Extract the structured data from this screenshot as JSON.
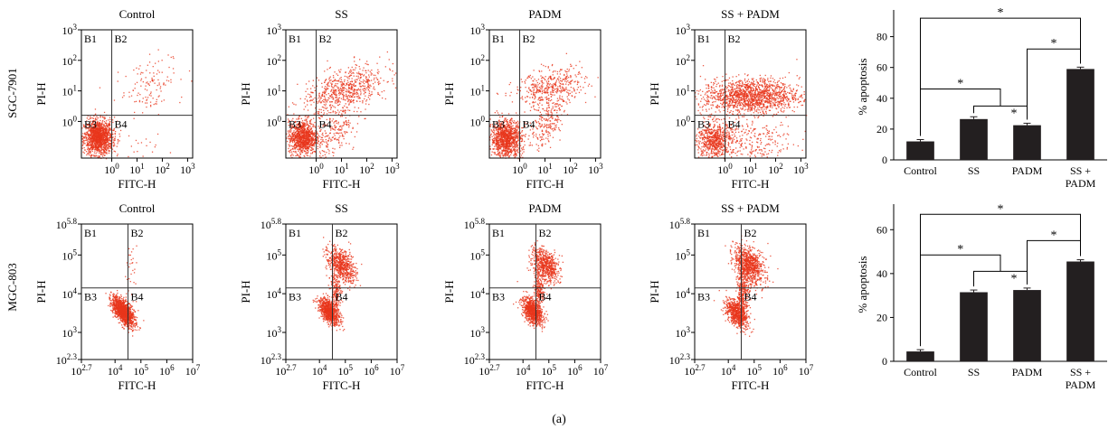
{
  "figure": {
    "panel_label": "(a)",
    "row_labels": [
      "SGC-7901",
      "MGC-803"
    ],
    "colors": {
      "dots": "#e8361c",
      "bars": "#231f20",
      "axes": "#000000"
    }
  },
  "chart_data": [
    {
      "type": "scatter",
      "row": 0,
      "col": 0,
      "title": "Control",
      "xlabel": "FITC-H",
      "ylabel": "PI-H",
      "x_ticks": [
        "10^0",
        "10^1",
        "10^2",
        "10^3"
      ],
      "y_ticks": [
        "10^0",
        "10^1",
        "10^2",
        "10^3"
      ],
      "xlim": [
        -1.2,
        3.2
      ],
      "ylim": [
        -1.2,
        3.0
      ],
      "scale": "log",
      "quadrant_gate": {
        "x": 0,
        "y": 0.2
      },
      "quadrant_labels": [
        "B1",
        "B2",
        "B3",
        "B4"
      ],
      "populations": [
        {
          "cx": -0.55,
          "cy": -0.5,
          "sx": 0.28,
          "sy": 0.28,
          "n": 1400
        },
        {
          "cx": 1.4,
          "cy": 1.2,
          "sx": 0.6,
          "sy": 0.45,
          "n": 130,
          "rot": 0.35
        },
        {
          "cx": 0.2,
          "cy": -0.9,
          "sx": 0.8,
          "sy": 0.25,
          "n": 40
        }
      ]
    },
    {
      "type": "scatter",
      "row": 0,
      "col": 1,
      "title": "SS",
      "xlabel": "FITC-H",
      "ylabel": "PI-H",
      "x_ticks": [
        "10^0",
        "10^1",
        "10^2",
        "10^3"
      ],
      "y_ticks": [
        "10^0",
        "10^1",
        "10^2",
        "10^3"
      ],
      "xlim": [
        -1.2,
        3.2
      ],
      "ylim": [
        -1.2,
        3.0
      ],
      "scale": "log",
      "quadrant_gate": {
        "x": 0,
        "y": 0.2
      },
      "quadrant_labels": [
        "B1",
        "B2",
        "B3",
        "B4"
      ],
      "populations": [
        {
          "cx": -0.55,
          "cy": -0.5,
          "sx": 0.28,
          "sy": 0.28,
          "n": 1000
        },
        {
          "cx": 1.1,
          "cy": 1.0,
          "sx": 0.85,
          "sy": 0.35,
          "n": 700,
          "rot": 0.3
        },
        {
          "cx": 0.7,
          "cy": -0.4,
          "sx": 0.5,
          "sy": 0.35,
          "n": 200,
          "rot": 0.8
        }
      ]
    },
    {
      "type": "scatter",
      "row": 0,
      "col": 2,
      "title": "PADM",
      "xlabel": "FITC-H",
      "ylabel": "PI-H",
      "x_ticks": [
        "10^0",
        "10^1",
        "10^2",
        "10^3"
      ],
      "y_ticks": [
        "10^0",
        "10^1",
        "10^2",
        "10^3"
      ],
      "xlim": [
        -1.2,
        3.2
      ],
      "ylim": [
        -1.2,
        3.0
      ],
      "scale": "log",
      "quadrant_gate": {
        "x": 0,
        "y": 0.2
      },
      "quadrant_labels": [
        "B1",
        "B2",
        "B3",
        "B4"
      ],
      "populations": [
        {
          "cx": -0.55,
          "cy": -0.55,
          "sx": 0.3,
          "sy": 0.3,
          "n": 1100
        },
        {
          "cx": 1.2,
          "cy": 1.1,
          "sx": 0.7,
          "sy": 0.3,
          "n": 450,
          "rot": 0.2
        },
        {
          "cx": 1.1,
          "cy": 0.0,
          "sx": 0.5,
          "sy": 0.25,
          "n": 220,
          "rot": 0.9
        }
      ]
    },
    {
      "type": "scatter",
      "row": 0,
      "col": 3,
      "title": "SS + PADM",
      "xlabel": "FITC-H",
      "ylabel": "PI-H",
      "x_ticks": [
        "10^0",
        "10^1",
        "10^2",
        "10^3"
      ],
      "y_ticks": [
        "10^0",
        "10^1",
        "10^2",
        "10^3"
      ],
      "xlim": [
        -1.2,
        3.2
      ],
      "ylim": [
        -1.2,
        3.0
      ],
      "scale": "log",
      "quadrant_gate": {
        "x": 0,
        "y": 0.2
      },
      "quadrant_labels": [
        "B1",
        "B2",
        "B3",
        "B4"
      ],
      "populations": [
        {
          "cx": -0.45,
          "cy": -0.6,
          "sx": 0.35,
          "sy": 0.3,
          "n": 650
        },
        {
          "cx": 1.0,
          "cy": 0.85,
          "sx": 0.95,
          "sy": 0.28,
          "n": 1500
        },
        {
          "cx": 0.9,
          "cy": -0.6,
          "sx": 0.9,
          "sy": 0.4,
          "n": 280
        }
      ]
    },
    {
      "type": "bar",
      "row": 0,
      "col": 4,
      "ylabel": "% apoptosis",
      "categories": [
        "Control",
        "SS",
        "PADM",
        "SS + PADM"
      ],
      "values": [
        12,
        26.5,
        22.5,
        59
      ],
      "errors": [
        1.2,
        1.5,
        1.3,
        1.2
      ],
      "ylim": [
        0,
        95
      ],
      "yticks": [
        0,
        20,
        40,
        60,
        80
      ],
      "significance": [
        {
          "type": "pair",
          "from": 0,
          "to": 3,
          "level": 92,
          "label": "*"
        },
        {
          "type": "pair",
          "from": 2,
          "to": 3,
          "level": 72,
          "label": "*"
        },
        {
          "type": "group",
          "single": 0,
          "group": [
            1,
            2
          ],
          "level": 46,
          "sublevel": 35,
          "label": "*"
        }
      ]
    },
    {
      "type": "scatter",
      "row": 1,
      "col": 0,
      "title": "Control",
      "xlabel": "FITC-H",
      "ylabel": "PI-H",
      "x_ticks": [
        "10^2.7",
        "10^4",
        "10^5",
        "10^6",
        "10^7"
      ],
      "y_ticks": [
        "10^2.3",
        "10^3",
        "10^4",
        "10^5",
        "10^5.8"
      ],
      "xlim": [
        2.7,
        7
      ],
      "ylim": [
        2.3,
        5.8
      ],
      "scale": "log",
      "quadrant_gate": {
        "x": 4.5,
        "y": 4.15
      },
      "quadrant_labels": [
        "B1",
        "B2",
        "B3",
        "B4"
      ],
      "populations": [
        {
          "cx": 4.3,
          "cy": 3.55,
          "sx": 0.12,
          "sy": 0.25,
          "n": 1300,
          "rot": 0.9
        },
        {
          "cx": 4.6,
          "cy": 4.6,
          "sx": 0.12,
          "sy": 0.35,
          "n": 30
        }
      ]
    },
    {
      "type": "scatter",
      "row": 1,
      "col": 1,
      "title": "SS",
      "xlabel": "FITC-H",
      "ylabel": "PI-H",
      "x_ticks": [
        "10^2.7",
        "10^4",
        "10^5",
        "10^6",
        "10^7"
      ],
      "y_ticks": [
        "10^2.3",
        "10^3",
        "10^4",
        "10^5",
        "10^5.8"
      ],
      "xlim": [
        2.7,
        7
      ],
      "ylim": [
        2.3,
        5.8
      ],
      "scale": "log",
      "quadrant_gate": {
        "x": 4.5,
        "y": 4.15
      },
      "quadrant_labels": [
        "B1",
        "B2",
        "B3",
        "B4"
      ],
      "populations": [
        {
          "cx": 4.35,
          "cy": 3.55,
          "sx": 0.12,
          "sy": 0.22,
          "n": 850,
          "rot": 0.9
        },
        {
          "cx": 4.85,
          "cy": 4.75,
          "sx": 0.18,
          "sy": 0.3,
          "n": 650,
          "rot": 1.0
        },
        {
          "cx": 4.6,
          "cy": 4.1,
          "sx": 0.1,
          "sy": 0.25,
          "n": 200
        }
      ]
    },
    {
      "type": "scatter",
      "row": 1,
      "col": 2,
      "title": "PADM",
      "xlabel": "FITC-H",
      "ylabel": "PI-H",
      "x_ticks": [
        "10^2.7",
        "10^4",
        "10^5",
        "10^6",
        "10^7"
      ],
      "y_ticks": [
        "10^2.3",
        "10^3",
        "10^4",
        "10^5",
        "10^5.8"
      ],
      "xlim": [
        2.7,
        7
      ],
      "ylim": [
        2.3,
        5.8
      ],
      "scale": "log",
      "quadrant_gate": {
        "x": 4.5,
        "y": 4.15
      },
      "quadrant_labels": [
        "B1",
        "B2",
        "B3",
        "B4"
      ],
      "populations": [
        {
          "cx": 4.35,
          "cy": 3.55,
          "sx": 0.13,
          "sy": 0.22,
          "n": 850,
          "rot": 0.9
        },
        {
          "cx": 4.85,
          "cy": 4.75,
          "sx": 0.18,
          "sy": 0.3,
          "n": 650,
          "rot": 1.0
        },
        {
          "cx": 4.6,
          "cy": 4.1,
          "sx": 0.1,
          "sy": 0.25,
          "n": 200
        }
      ]
    },
    {
      "type": "scatter",
      "row": 1,
      "col": 3,
      "title": "SS + PADM",
      "xlabel": "FITC-H",
      "ylabel": "PI-H",
      "x_ticks": [
        "10^2.7",
        "10^4",
        "10^5",
        "10^6",
        "10^7"
      ],
      "y_ticks": [
        "10^2.3",
        "10^3",
        "10^4",
        "10^5",
        "10^5.8"
      ],
      "xlim": [
        2.7,
        7
      ],
      "ylim": [
        2.3,
        5.8
      ],
      "scale": "log",
      "quadrant_gate": {
        "x": 4.5,
        "y": 4.15
      },
      "quadrant_labels": [
        "B1",
        "B2",
        "B3",
        "B4"
      ],
      "populations": [
        {
          "cx": 4.3,
          "cy": 3.5,
          "sx": 0.14,
          "sy": 0.25,
          "n": 700,
          "rot": 0.9
        },
        {
          "cx": 4.8,
          "cy": 4.75,
          "sx": 0.2,
          "sy": 0.32,
          "n": 850,
          "rot": 1.0
        },
        {
          "cx": 4.55,
          "cy": 4.05,
          "sx": 0.12,
          "sy": 0.28,
          "n": 300
        }
      ]
    },
    {
      "type": "bar",
      "row": 1,
      "col": 4,
      "ylabel": "% apoptosis",
      "categories": [
        "Control",
        "SS",
        "PADM",
        "SS + PADM"
      ],
      "values": [
        4.5,
        31.5,
        32.5,
        45.5
      ],
      "errors": [
        0.8,
        1.0,
        0.9,
        0.8
      ],
      "ylim": [
        0,
        70
      ],
      "yticks": [
        0,
        20,
        40,
        60
      ],
      "significance": [
        {
          "type": "pair",
          "from": 0,
          "to": 3,
          "level": 67,
          "label": "*"
        },
        {
          "type": "pair",
          "from": 2,
          "to": 3,
          "level": 55,
          "label": "*"
        },
        {
          "type": "group",
          "single": 0,
          "group": [
            1,
            2
          ],
          "level": 48.5,
          "sublevel": 41,
          "label": "*"
        }
      ]
    }
  ]
}
